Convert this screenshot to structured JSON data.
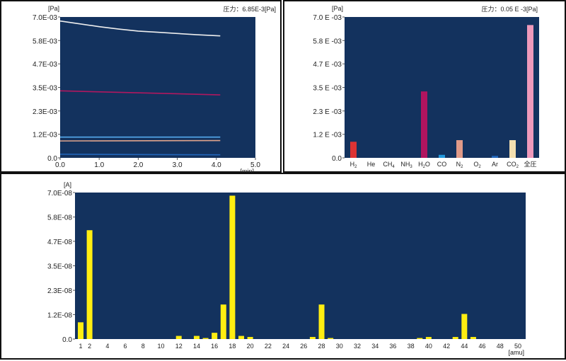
{
  "chart_data": [
    {
      "type": "line",
      "ylabel_unit": "[Pa]",
      "xlabel_unit": "[min]",
      "pressure_label": "圧力：6.85E-3[Pa]",
      "y_ticks": [
        "0.0",
        "1.2E-03",
        "2.3E-03",
        "3.5E-03",
        "4.7E-03",
        "5.8E-03",
        "7.0E-03"
      ],
      "y_tick_values": [
        0,
        0.00117,
        0.00233,
        0.0035,
        0.00467,
        0.00583,
        0.007
      ],
      "x_ticks": [
        "0.0",
        "1.0",
        "2.0",
        "3.0",
        "4.0",
        "5.0"
      ],
      "x_tick_values": [
        0,
        1,
        2,
        3,
        4,
        5
      ],
      "xlim": [
        0,
        5
      ],
      "ylim": [
        0,
        0.007
      ],
      "series": [
        {
          "color": "#eeeeee",
          "x": [
            0,
            0.5,
            1,
            1.5,
            2,
            2.5,
            3,
            3.5,
            4.1
          ],
          "values": [
            0.0068,
            0.00666,
            0.00652,
            0.0064,
            0.0063,
            0.00624,
            0.00618,
            0.00612,
            0.00606
          ]
        },
        {
          "color": "#b0185f",
          "x": [
            0,
            4.1
          ],
          "values": [
            0.00333,
            0.00313
          ]
        },
        {
          "color": "#55aaee",
          "x": [
            0,
            4.1
          ],
          "values": [
            0.00103,
            0.00103
          ]
        },
        {
          "color": "#e0a48c",
          "x": [
            0,
            4.1
          ],
          "values": [
            0.00084,
            0.00086
          ]
        },
        {
          "color": "#2266bb",
          "x": [
            0,
            4.1
          ],
          "values": [
            0.00018,
            0.00015
          ]
        }
      ]
    },
    {
      "type": "bar",
      "ylabel_unit": "[Pa]",
      "pressure_label": "圧力：0.05 E -3[Pa]",
      "y_ticks": [
        "0.0",
        "1.2 E -03",
        "2.3 E -03",
        "3.5 E -03",
        "4.7 E -03",
        "5.8 E -03",
        "7.0 E -03"
      ],
      "y_tick_values": [
        0,
        0.00117,
        0.00233,
        0.0035,
        0.00467,
        0.00583,
        0.007
      ],
      "ylim": [
        0,
        0.007
      ],
      "categories": [
        {
          "base": "H",
          "sub": "2"
        },
        {
          "base": "He",
          "sub": ""
        },
        {
          "base": "CH",
          "sub": "4"
        },
        {
          "base": "NH",
          "sub": "3"
        },
        {
          "base": "H",
          "sub": "2",
          "tail": "O"
        },
        {
          "base": "CO",
          "sub": ""
        },
        {
          "base": "N",
          "sub": "2"
        },
        {
          "base": "O",
          "sub": "2"
        },
        {
          "base": "Ar",
          "sub": ""
        },
        {
          "base": "CO",
          "sub": "2"
        },
        {
          "base": "全圧",
          "sub": ""
        }
      ],
      "values": [
        0.0008,
        0,
        0,
        0,
        0.0033,
        0.00015,
        0.00088,
        0,
        0.0001,
        0.00088,
        0.0066
      ],
      "colors": [
        "#dd3333",
        "#1b3e6b",
        "#1b3e6b",
        "#1b3e6b",
        "#b0145f",
        "#2299dd",
        "#e09a88",
        "#1b3e6b",
        "#2266bb",
        "#f3dfb0",
        "#ee99bb"
      ]
    },
    {
      "type": "bar",
      "ylabel_unit": "[A]",
      "xlabel_unit": "[amu]",
      "y_ticks": [
        "0.0",
        "1.2E-08",
        "2.3E-08",
        "3.5E-08",
        "4.7E-08",
        "5.8E-08",
        "7.0E-08"
      ],
      "y_tick_values": [
        0,
        1.17e-08,
        2.33e-08,
        3.5e-08,
        4.67e-08,
        5.83e-08,
        7e-08
      ],
      "ylim": [
        0,
        7e-08
      ],
      "x_ticks": [
        "1",
        "2",
        "4",
        "6",
        "8",
        "10",
        "12",
        "14",
        "16",
        "18",
        "20",
        "22",
        "24",
        "26",
        "28",
        "30",
        "32",
        "34",
        "36",
        "38",
        "40",
        "42",
        "44",
        "46",
        "48",
        "50"
      ],
      "x_tick_values": [
        1,
        2,
        4,
        6,
        8,
        10,
        12,
        14,
        16,
        18,
        20,
        22,
        24,
        26,
        28,
        30,
        32,
        34,
        36,
        38,
        40,
        42,
        44,
        46,
        48,
        50
      ],
      "bar_color": "#ffee11",
      "x": [
        1,
        2,
        12,
        14,
        15,
        16,
        17,
        18,
        19,
        20,
        27,
        28,
        29,
        39,
        40,
        43,
        44,
        45
      ],
      "values": [
        8e-09,
        5.2e-08,
        1.5e-09,
        1.5e-09,
        5e-10,
        3e-09,
        1.65e-08,
        6.85e-08,
        1.5e-09,
        1e-09,
        1e-09,
        1.65e-08,
        5e-10,
        5e-10,
        1e-09,
        1e-09,
        1.2e-08,
        1e-09
      ]
    }
  ],
  "colors": {
    "plot_bg": "#13325e",
    "axis": "#555555"
  }
}
